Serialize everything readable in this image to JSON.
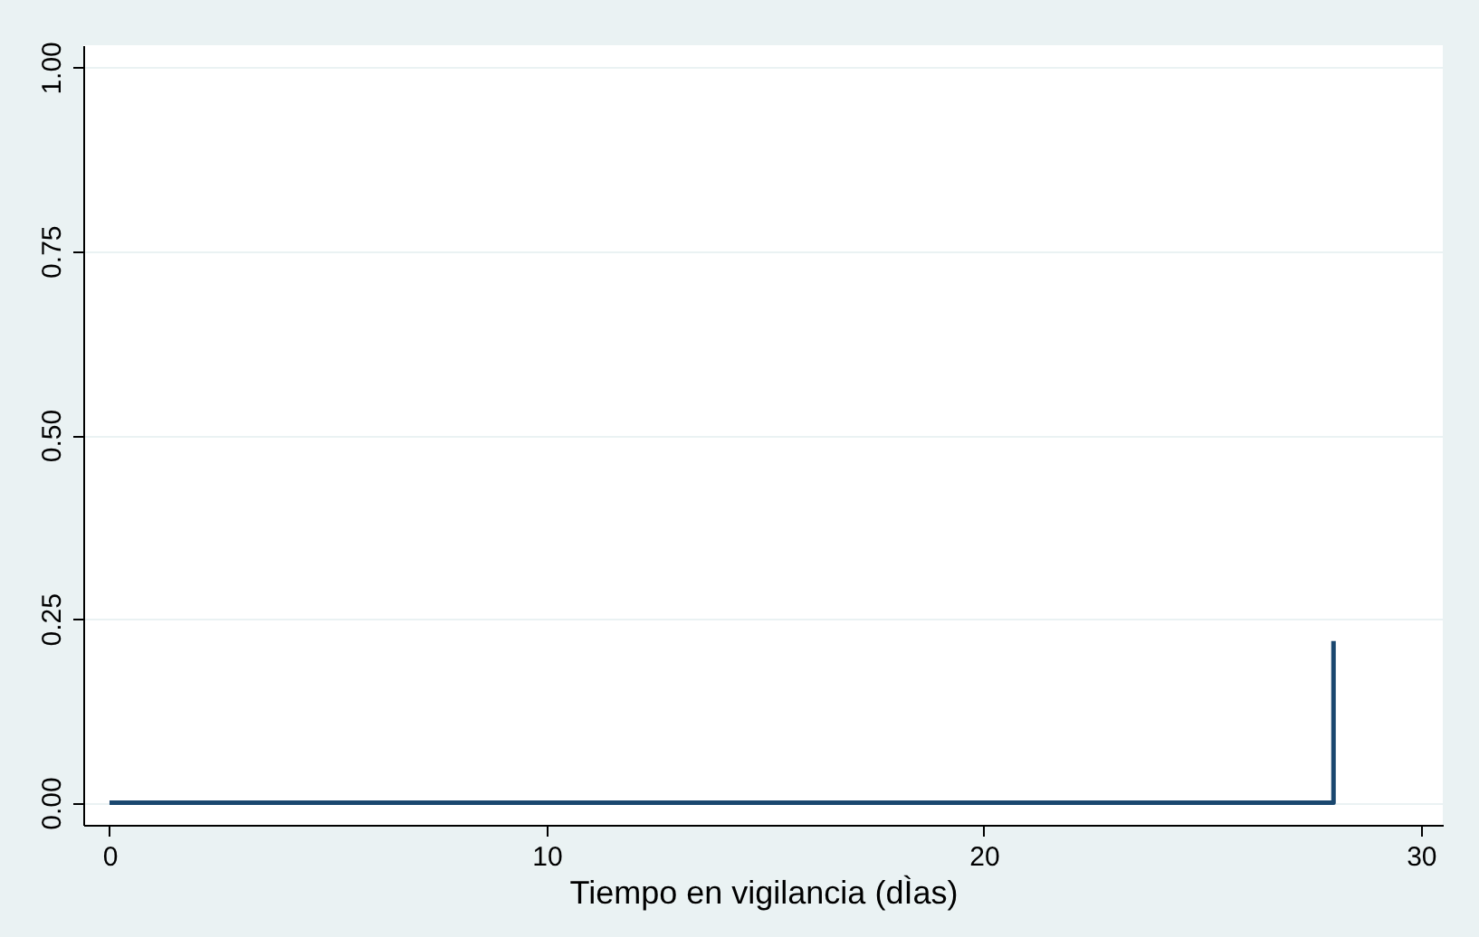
{
  "chart_data": {
    "type": "step",
    "xlabel": "Tiempo en vigilancia (dÌas)",
    "x": [
      0,
      28
    ],
    "series": [
      {
        "color": "#1a476f",
        "values": [
          0,
          0.22
        ]
      }
    ],
    "xlim": [
      -0.6,
      30.5
    ],
    "xticks": [
      0,
      10,
      20,
      30
    ],
    "ylim": [
      -0.03,
      1.03
    ],
    "yticks": [
      {
        "value": 0,
        "label": "0.00"
      },
      {
        "value": 0.25,
        "label": "0.25"
      },
      {
        "value": 0.5,
        "label": "0.50"
      },
      {
        "value": 0.75,
        "label": "0.75"
      },
      {
        "value": 1,
        "label": "1.00"
      }
    ],
    "grid": "y",
    "marker": "none",
    "line_style": "solid"
  }
}
